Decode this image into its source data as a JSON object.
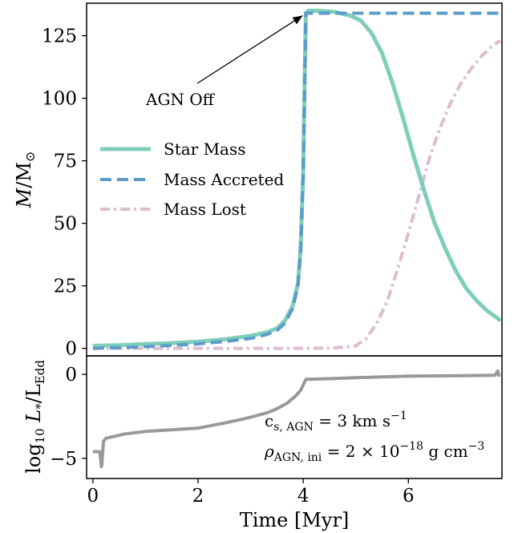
{
  "colors": {
    "star_mass": "#7fcdbb",
    "mass_accreted": "#5a9bc9",
    "mass_lost": "#dbbcd0",
    "luminosity": "#999999"
  },
  "chart_data": [
    {
      "type": "line",
      "panel": "top",
      "ylabel": "M/M⊙",
      "ylim": [
        -3,
        138
      ],
      "xlim": [
        -0.12,
        7.78
      ],
      "yticks": [
        0,
        25,
        50,
        75,
        100,
        125
      ],
      "ytick_labels": [
        "0",
        "25",
        "50",
        "75",
        "100",
        "125"
      ],
      "legend": {
        "placement": "center-left",
        "entries": [
          "Star Mass",
          "Mass Accreted",
          "Mass Lost"
        ]
      },
      "annotation": {
        "text": "AGN Off",
        "text_at": [
          1.0,
          105
        ],
        "points_to": [
          4.05,
          134
        ]
      },
      "series": [
        {
          "name": "Star Mass",
          "style": "solid",
          "x": [
            0,
            0.5,
            1.0,
            1.5,
            2.0,
            2.5,
            3.0,
            3.3,
            3.5,
            3.65,
            3.8,
            3.9,
            3.95,
            4.0,
            4.03,
            4.05,
            4.1,
            4.3,
            4.6,
            4.9,
            5.1,
            5.3,
            5.5,
            5.7,
            5.9,
            6.1,
            6.3,
            6.5,
            6.7,
            6.9,
            7.1,
            7.3,
            7.5,
            7.7,
            7.75
          ],
          "values": [
            1,
            1.3,
            1.7,
            2.1,
            2.7,
            3.6,
            5.0,
            6.4,
            8.0,
            11,
            17,
            26,
            40,
            70,
            110,
            134,
            135,
            135,
            134.5,
            133,
            131,
            126,
            118,
            106,
            92,
            77,
            63,
            50,
            40,
            31,
            24,
            19,
            15,
            12,
            11
          ]
        },
        {
          "name": "Mass Accreted",
          "style": "dashed",
          "x": [
            0,
            0.5,
            1.0,
            1.5,
            2.0,
            2.5,
            3.0,
            3.3,
            3.5,
            3.65,
            3.8,
            3.9,
            3.95,
            4.0,
            4.03,
            4.05,
            4.5,
            5.0,
            5.5,
            6.0,
            6.5,
            7.0,
            7.5,
            7.75
          ],
          "values": [
            0,
            0.3,
            0.7,
            1.2,
            1.8,
            2.7,
            4.0,
            5.5,
            7.2,
            10,
            16,
            25,
            39,
            69,
            109,
            134,
            134,
            134,
            134,
            134,
            134,
            134,
            134,
            134
          ]
        },
        {
          "name": "Mass Lost",
          "style": "dashdot",
          "x": [
            0,
            1,
            2,
            3,
            4,
            4.5,
            4.8,
            5.0,
            5.2,
            5.4,
            5.6,
            5.8,
            6.0,
            6.2,
            6.4,
            6.6,
            6.8,
            7.0,
            7.2,
            7.4,
            7.6,
            7.75
          ],
          "values": [
            0,
            0,
            0,
            0,
            0,
            0.1,
            0.5,
            1,
            4,
            10,
            19,
            32,
            46,
            61,
            76,
            88,
            98,
            106,
            112,
            117,
            121,
            123
          ]
        }
      ]
    },
    {
      "type": "line",
      "panel": "bottom",
      "xlabel": "Time [Myr]",
      "ylabel": "log10 L*/LEdd",
      "ylim": [
        -6.2,
        1.1
      ],
      "xlim": [
        -0.12,
        7.78
      ],
      "xticks": [
        0,
        2,
        4,
        6
      ],
      "xtick_labels": [
        "0",
        "2",
        "4",
        "6"
      ],
      "yticks": [
        0,
        -5
      ],
      "ytick_labels": [
        "0",
        "−5"
      ],
      "parameters": {
        "line1_a": "c",
        "line1_sub": "s, AGN",
        "line1_b": " = 3 km s",
        "line1_sup": "−1",
        "line2_a": "ρ",
        "line2_sub": "AGN, ini",
        "line2_b": " = 2 × 10",
        "line2_sup": "−18",
        "line2_c": " g cm",
        "line2_sup2": "−3"
      },
      "series": [
        {
          "style": "solid",
          "x": [
            0,
            0.1,
            0.13,
            0.15,
            0.16,
            0.17,
            0.2,
            0.25,
            0.4,
            0.6,
            1.0,
            1.5,
            2.0,
            2.5,
            2.8,
            3.0,
            3.3,
            3.5,
            3.7,
            3.85,
            3.95,
            4.05,
            4.3,
            5.0,
            6.0,
            7.0,
            7.65,
            7.7,
            7.72,
            7.75
          ],
          "values": [
            -4.6,
            -4.6,
            -4.6,
            -5.1,
            -5.5,
            -5.4,
            -4.0,
            -3.8,
            -3.7,
            -3.55,
            -3.4,
            -3.3,
            -3.2,
            -2.9,
            -2.7,
            -2.55,
            -2.3,
            -2.05,
            -1.7,
            -1.3,
            -0.95,
            -0.3,
            -0.28,
            -0.2,
            -0.1,
            -0.08,
            -0.05,
            0.2,
            -0.05,
            -0.05
          ]
        }
      ]
    }
  ]
}
